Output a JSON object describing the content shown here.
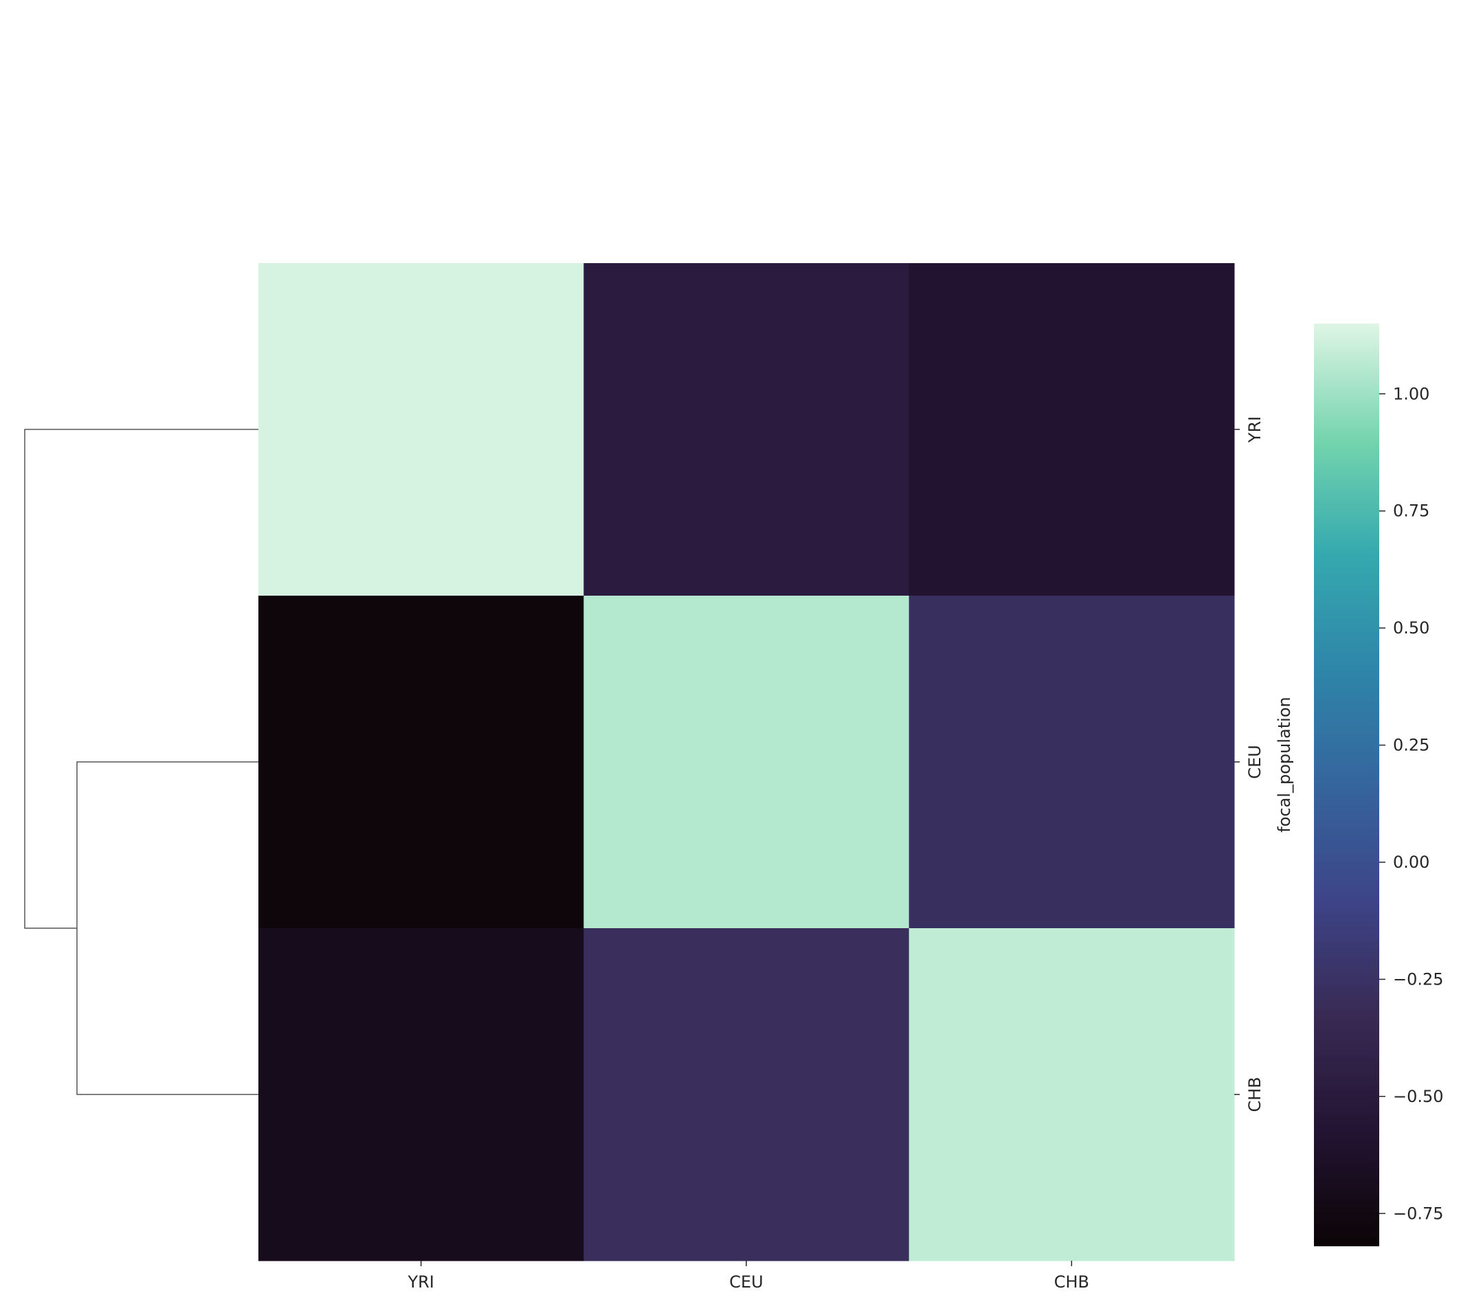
{
  "chart_data": {
    "type": "heatmap",
    "title": "",
    "x_categories": [
      "YRI",
      "CEU",
      "CHB"
    ],
    "y_categories": [
      "YRI",
      "CEU",
      "CHB"
    ],
    "ylabel": "focal_population",
    "xlabel": "",
    "values": [
      [
        1.13,
        -0.48,
        -0.58
      ],
      [
        -0.79,
        1.05,
        -0.28
      ],
      [
        -0.7,
        -0.29,
        1.08
      ]
    ],
    "colorbar": {
      "vmin": -0.82,
      "vmax": 1.15,
      "ticks": [
        1.0,
        0.75,
        0.5,
        0.25,
        0.0,
        -0.25,
        -0.5,
        -0.75
      ],
      "tick_labels": [
        "1.00",
        "0.75",
        "0.50",
        "0.25",
        "0.00",
        "−0.25",
        "−0.50",
        "−0.75"
      ],
      "colormap": "mako"
    },
    "dendrogram": {
      "side": "left",
      "structure": "CEU and CHB join first, then YRI"
    },
    "legend": "none",
    "grid": false
  }
}
